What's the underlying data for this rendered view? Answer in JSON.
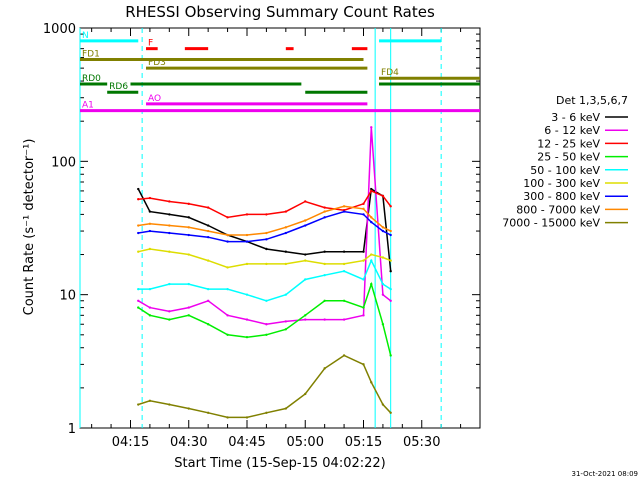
{
  "chart_data": {
    "type": "line",
    "title": "RHESSI Observing Summary Count Rates",
    "xlabel": "Start Time (15-Sep-15 04:02:22)",
    "ylabel": "Count Rate (s⁻¹ detector⁻¹)",
    "y_scale": "log",
    "xlim": [
      "04:02",
      "05:45"
    ],
    "ylim": [
      1,
      1000
    ],
    "x_ticks": [
      "04:15",
      "04:30",
      "04:45",
      "05:00",
      "05:15",
      "05:30"
    ],
    "y_ticks": [
      "1",
      "10",
      "100",
      "1000"
    ],
    "legend_title": "Det 1,3,5,6,7",
    "legend_position": "right",
    "series": [
      {
        "name": "3 - 6 keV",
        "color": "#000000",
        "x": [
          "04:17",
          "04:20",
          "04:25",
          "04:30",
          "04:35",
          "04:40",
          "04:45",
          "04:50",
          "04:55",
          "05:00",
          "05:05",
          "05:10",
          "05:15",
          "05:17",
          "05:20",
          "05:22"
        ],
        "values": [
          62,
          42,
          40,
          38,
          33,
          28,
          25,
          22,
          21,
          20,
          21,
          21,
          21,
          62,
          55,
          15
        ]
      },
      {
        "name": "6 - 12 keV",
        "color": "#ee00ee",
        "x": [
          "04:17",
          "04:20",
          "04:25",
          "04:30",
          "04:35",
          "04:40",
          "04:45",
          "04:50",
          "04:55",
          "05:00",
          "05:05",
          "05:10",
          "05:15",
          "05:17",
          "05:20",
          "05:22"
        ],
        "values": [
          9,
          8,
          7.5,
          8,
          9,
          7,
          6.5,
          6,
          6.3,
          6.5,
          6.5,
          6.5,
          7,
          180,
          10,
          9
        ]
      },
      {
        "name": "12 - 25 keV",
        "color": "#ff0000",
        "x": [
          "04:17",
          "04:20",
          "04:25",
          "04:30",
          "04:35",
          "04:40",
          "04:45",
          "04:50",
          "04:55",
          "05:00",
          "05:05",
          "05:10",
          "05:15",
          "05:17",
          "05:20",
          "05:22"
        ],
        "values": [
          52,
          53,
          50,
          48,
          45,
          38,
          40,
          40,
          42,
          50,
          45,
          43,
          48,
          60,
          55,
          46
        ]
      },
      {
        "name": "25 - 50 keV",
        "color": "#00ee00",
        "x": [
          "04:17",
          "04:20",
          "04:25",
          "04:30",
          "04:35",
          "04:40",
          "04:45",
          "04:50",
          "04:55",
          "05:00",
          "05:05",
          "05:10",
          "05:15",
          "05:17",
          "05:20",
          "05:22"
        ],
        "values": [
          8,
          7,
          6.5,
          7,
          6,
          5,
          4.8,
          5,
          5.5,
          7,
          9,
          9,
          8,
          12,
          6,
          3.5
        ]
      },
      {
        "name": "50 - 100 keV",
        "color": "#00ffff",
        "x": [
          "04:17",
          "04:20",
          "04:25",
          "04:30",
          "04:35",
          "04:40",
          "04:45",
          "04:50",
          "04:55",
          "05:00",
          "05:05",
          "05:10",
          "05:15",
          "05:17",
          "05:20",
          "05:22"
        ],
        "values": [
          11,
          11,
          12,
          12,
          11,
          11,
          10,
          9,
          10,
          13,
          14,
          15,
          13,
          18,
          12,
          11
        ]
      },
      {
        "name": "100 - 300 keV",
        "color": "#dddd00",
        "x": [
          "04:17",
          "04:20",
          "04:25",
          "04:30",
          "04:35",
          "04:40",
          "04:45",
          "04:50",
          "04:55",
          "05:00",
          "05:05",
          "05:10",
          "05:15",
          "05:17",
          "05:20",
          "05:22"
        ],
        "values": [
          21,
          22,
          21,
          20,
          18,
          16,
          17,
          17,
          17,
          18,
          17,
          17,
          18,
          20,
          19,
          18
        ]
      },
      {
        "name": "300 - 800 keV",
        "color": "#0000ff",
        "x": [
          "04:17",
          "04:20",
          "04:25",
          "04:30",
          "04:35",
          "04:40",
          "04:45",
          "04:50",
          "04:55",
          "05:00",
          "05:05",
          "05:10",
          "05:15",
          "05:17",
          "05:20",
          "05:22"
        ],
        "values": [
          29,
          30,
          29,
          28,
          27,
          25,
          25,
          26,
          29,
          33,
          38,
          42,
          40,
          35,
          30,
          28
        ]
      },
      {
        "name": "800 - 7000 keV",
        "color": "#ff8800",
        "x": [
          "04:17",
          "04:20",
          "04:25",
          "04:30",
          "04:35",
          "04:40",
          "04:45",
          "04:50",
          "04:55",
          "05:00",
          "05:05",
          "05:10",
          "05:15",
          "05:17",
          "05:20",
          "05:22"
        ],
        "values": [
          33,
          34,
          33,
          32,
          30,
          28,
          28,
          29,
          32,
          36,
          42,
          46,
          44,
          38,
          32,
          30
        ]
      },
      {
        "name": "7000 - 15000 keV",
        "color": "#808000",
        "x": [
          "04:17",
          "04:20",
          "04:25",
          "04:30",
          "04:35",
          "04:40",
          "04:45",
          "04:50",
          "04:55",
          "05:00",
          "05:05",
          "05:10",
          "05:15",
          "05:17",
          "05:20",
          "05:22"
        ],
        "values": [
          1.5,
          1.6,
          1.5,
          1.4,
          1.3,
          1.2,
          1.2,
          1.3,
          1.4,
          1.8,
          2.8,
          3.5,
          3.0,
          2.2,
          1.5,
          1.3
        ]
      }
    ],
    "flags": [
      {
        "label": "N",
        "color": "#00ffff",
        "y": 800,
        "segments": [
          [
            "04:02",
            "04:17"
          ],
          [
            "05:19",
            "05:35"
          ]
        ]
      },
      {
        "label": "F",
        "color": "#ff0000",
        "y": 700,
        "segments": [
          [
            "04:19",
            "04:22"
          ],
          [
            "04:29",
            "04:35"
          ],
          [
            "04:55",
            "04:57"
          ],
          [
            "05:12",
            "05:16"
          ]
        ]
      },
      {
        "label": "FD1",
        "color": "#808000",
        "y": 580,
        "segments": [
          [
            "04:02",
            "05:15"
          ]
        ]
      },
      {
        "label": "FD3",
        "color": "#808000",
        "y": 500,
        "segments": [
          [
            "04:19",
            "05:16"
          ]
        ]
      },
      {
        "label": "FD4",
        "color": "#808000",
        "y": 420,
        "segments": [
          [
            "05:19",
            "05:45"
          ]
        ]
      },
      {
        "label": "RD0",
        "color": "#007700",
        "y": 380,
        "segments": [
          [
            "04:02",
            "04:09"
          ],
          [
            "04:15",
            "04:59"
          ],
          [
            "05:19",
            "05:45"
          ]
        ]
      },
      {
        "label": "RD6",
        "color": "#007700",
        "y": 330,
        "segments": [
          [
            "04:09",
            "04:17"
          ],
          [
            "05:00",
            "05:16"
          ]
        ]
      },
      {
        "label": "AO",
        "color": "#ee00ee",
        "y": 270,
        "segments": [
          [
            "04:19",
            "05:16"
          ]
        ]
      },
      {
        "label": "A1",
        "color": "#ee00ee",
        "y": 240,
        "segments": [
          [
            "04:02",
            "05:45"
          ]
        ]
      }
    ],
    "vlines": [
      {
        "x": "04:02",
        "color": "#00ffff",
        "style": "solid"
      },
      {
        "x": "04:18",
        "color": "#00ffff",
        "style": "dashed"
      },
      {
        "x": "05:18",
        "color": "#00ffff",
        "style": "solid"
      },
      {
        "x": "05:22",
        "color": "#00ffff",
        "style": "solid"
      },
      {
        "x": "05:35",
        "color": "#00ffff",
        "style": "dashed"
      }
    ]
  },
  "footer": {
    "date": "31-Oct-2021 08:09"
  }
}
